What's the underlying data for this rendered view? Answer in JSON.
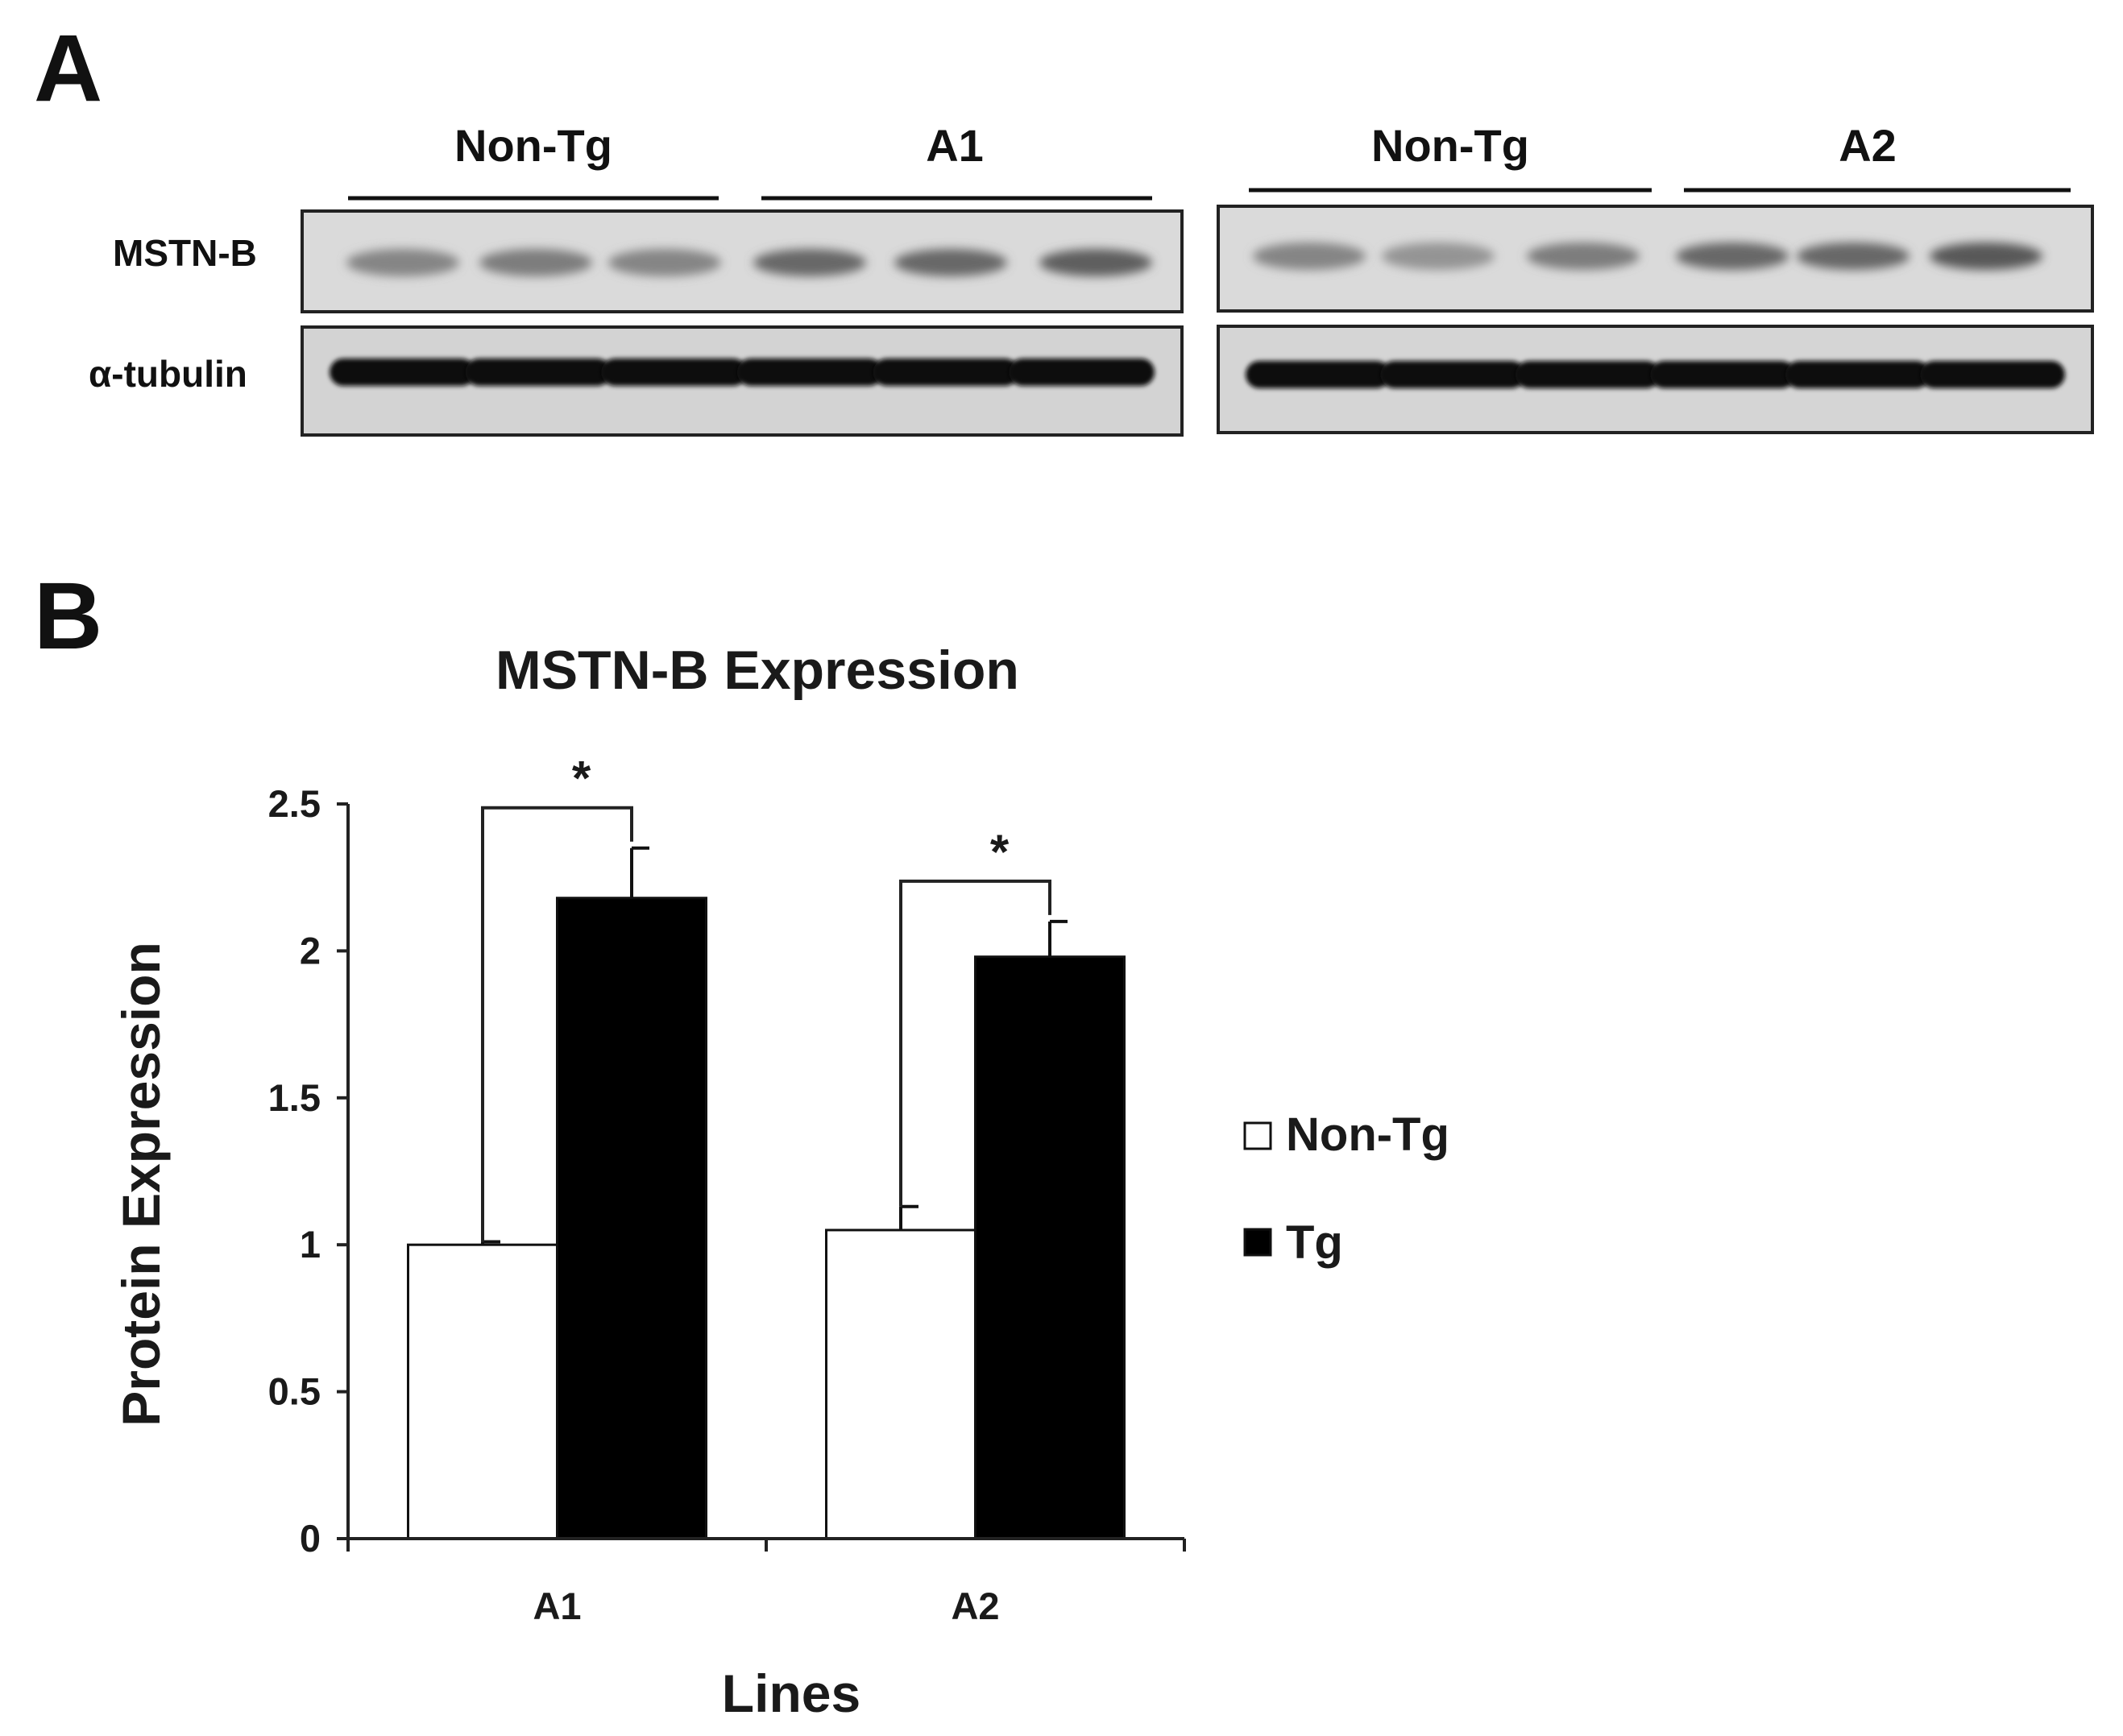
{
  "panel_a": {
    "label": "A",
    "row_labels": [
      "MSTN-B",
      "α-tubulin"
    ],
    "blots": [
      {
        "group_labels": [
          "Non-Tg",
          "A1"
        ],
        "mstn_band_intensity": [
          0.55,
          0.6,
          0.55,
          0.75,
          0.75,
          0.8
        ],
        "tubulin_band_intensity": [
          1,
          1,
          1,
          1,
          1,
          1
        ]
      },
      {
        "group_labels": [
          "Non-Tg",
          "A2"
        ],
        "mstn_band_intensity": [
          0.55,
          0.45,
          0.6,
          0.75,
          0.75,
          0.85
        ],
        "tubulin_band_intensity": [
          1,
          1,
          1,
          1,
          1,
          1
        ]
      }
    ]
  },
  "panel_b": {
    "label": "B"
  },
  "chart_data": {
    "type": "bar",
    "title": "MSTN-B Expression",
    "xlabel": "Lines",
    "ylabel": "Protein Expression",
    "categories": [
      "A1",
      "A2"
    ],
    "ylim": [
      0,
      2.5
    ],
    "yticks": [
      0,
      0.5,
      1,
      1.5,
      2,
      2.5
    ],
    "ytick_labels": [
      "0",
      "0.5",
      "1",
      "1.5",
      "2",
      "2.5"
    ],
    "series": [
      {
        "name": "Non-Tg",
        "values": [
          1.0,
          1.05
        ],
        "errors": [
          0.01,
          0.08
        ],
        "color": "#ffffff"
      },
      {
        "name": "Tg",
        "values": [
          2.18,
          1.98
        ],
        "errors": [
          0.17,
          0.12
        ],
        "color": "#000000"
      }
    ],
    "annotations": [
      {
        "text": "*",
        "category": "A1"
      },
      {
        "text": "*",
        "category": "A2"
      }
    ],
    "legend": "right",
    "grid": false
  }
}
